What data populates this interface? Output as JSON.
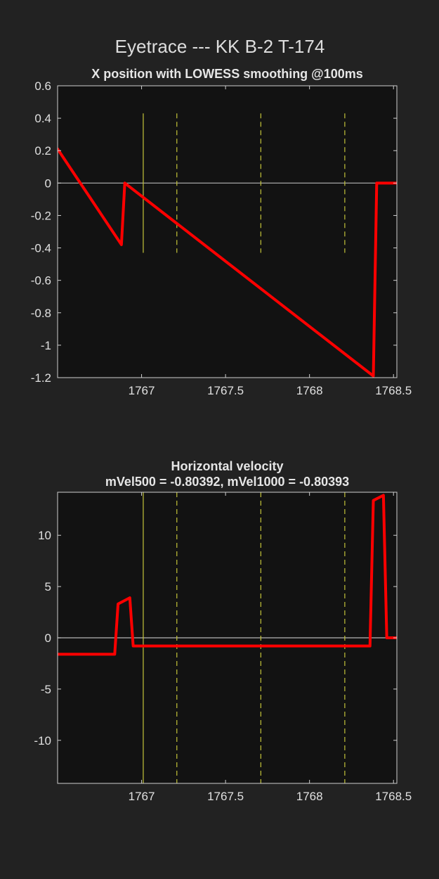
{
  "figure": {
    "suptitle": "Eyetrace --- KK B-2 T-174"
  },
  "colors": {
    "figure_background": "#222222",
    "axes_background": "#121212",
    "axes_frame": "#cfcfcf",
    "trace": "#ff0000",
    "zero_line": "#b5b5b5",
    "event_line": "#c4c43a",
    "text": "#e0e0e0"
  },
  "chart_data": [
    {
      "type": "line",
      "title_lines": [
        "X position with LOWESS smoothing @100ms"
      ],
      "xlabel": "",
      "ylabel": "",
      "xlim": [
        1766.5,
        1768.52
      ],
      "ylim": [
        -1.2,
        0.6
      ],
      "xticks": [
        1767,
        1767.5,
        1768,
        1768.5
      ],
      "xtick_labels": [
        "1767",
        "1767.5",
        "1768",
        "1768.5"
      ],
      "yticks": [
        0.6,
        0.4,
        0.2,
        0,
        -0.2,
        -0.4,
        -0.6,
        -0.8,
        -1,
        -1.2
      ],
      "ytick_labels": [
        "0.6",
        "0.4",
        "0.2",
        "0",
        "-0.2",
        "-0.4",
        "-0.6",
        "-0.8",
        "-1",
        "-1.2"
      ],
      "grid": false,
      "zero_line": 0,
      "event_markers": {
        "solid": [
          1767.01
        ],
        "dashed": [
          1767.21,
          1767.71,
          1768.21
        ],
        "y_range": [
          -0.43,
          0.43
        ]
      },
      "series": [
        {
          "x": [
            1766.5,
            1766.88,
            1766.9,
            1768.38,
            1768.4,
            1768.52
          ],
          "y": [
            0.21,
            -0.38,
            0.0,
            -1.19,
            0.0,
            0.0
          ]
        }
      ]
    },
    {
      "type": "line",
      "title_lines": [
        "Horizontal velocity",
        "mVel500 = -0.80392, mVel1000 = -0.80393"
      ],
      "xlabel": "",
      "ylabel": "",
      "xlim": [
        1766.5,
        1768.52
      ],
      "ylim": [
        -14.2,
        14.2
      ],
      "xticks": [
        1767,
        1767.5,
        1768,
        1768.5
      ],
      "xtick_labels": [
        "1767",
        "1767.5",
        "1768",
        "1768.5"
      ],
      "yticks": [
        10,
        5,
        0,
        -5,
        -10
      ],
      "ytick_labels": [
        "10",
        "5",
        "0",
        "-5",
        "-10"
      ],
      "grid": false,
      "zero_line": 0,
      "event_markers": {
        "solid": [
          1767.01
        ],
        "dashed": [
          1767.21,
          1767.71,
          1768.21
        ],
        "y_range": [
          -14.2,
          14.2
        ]
      },
      "series": [
        {
          "x": [
            1766.5,
            1766.84,
            1766.86,
            1766.93,
            1766.95,
            1768.36,
            1768.38,
            1768.44,
            1768.46,
            1768.52
          ],
          "y": [
            -1.6,
            -1.6,
            3.3,
            3.9,
            -0.8,
            -0.8,
            13.4,
            13.9,
            0.0,
            0.0
          ]
        }
      ]
    }
  ]
}
